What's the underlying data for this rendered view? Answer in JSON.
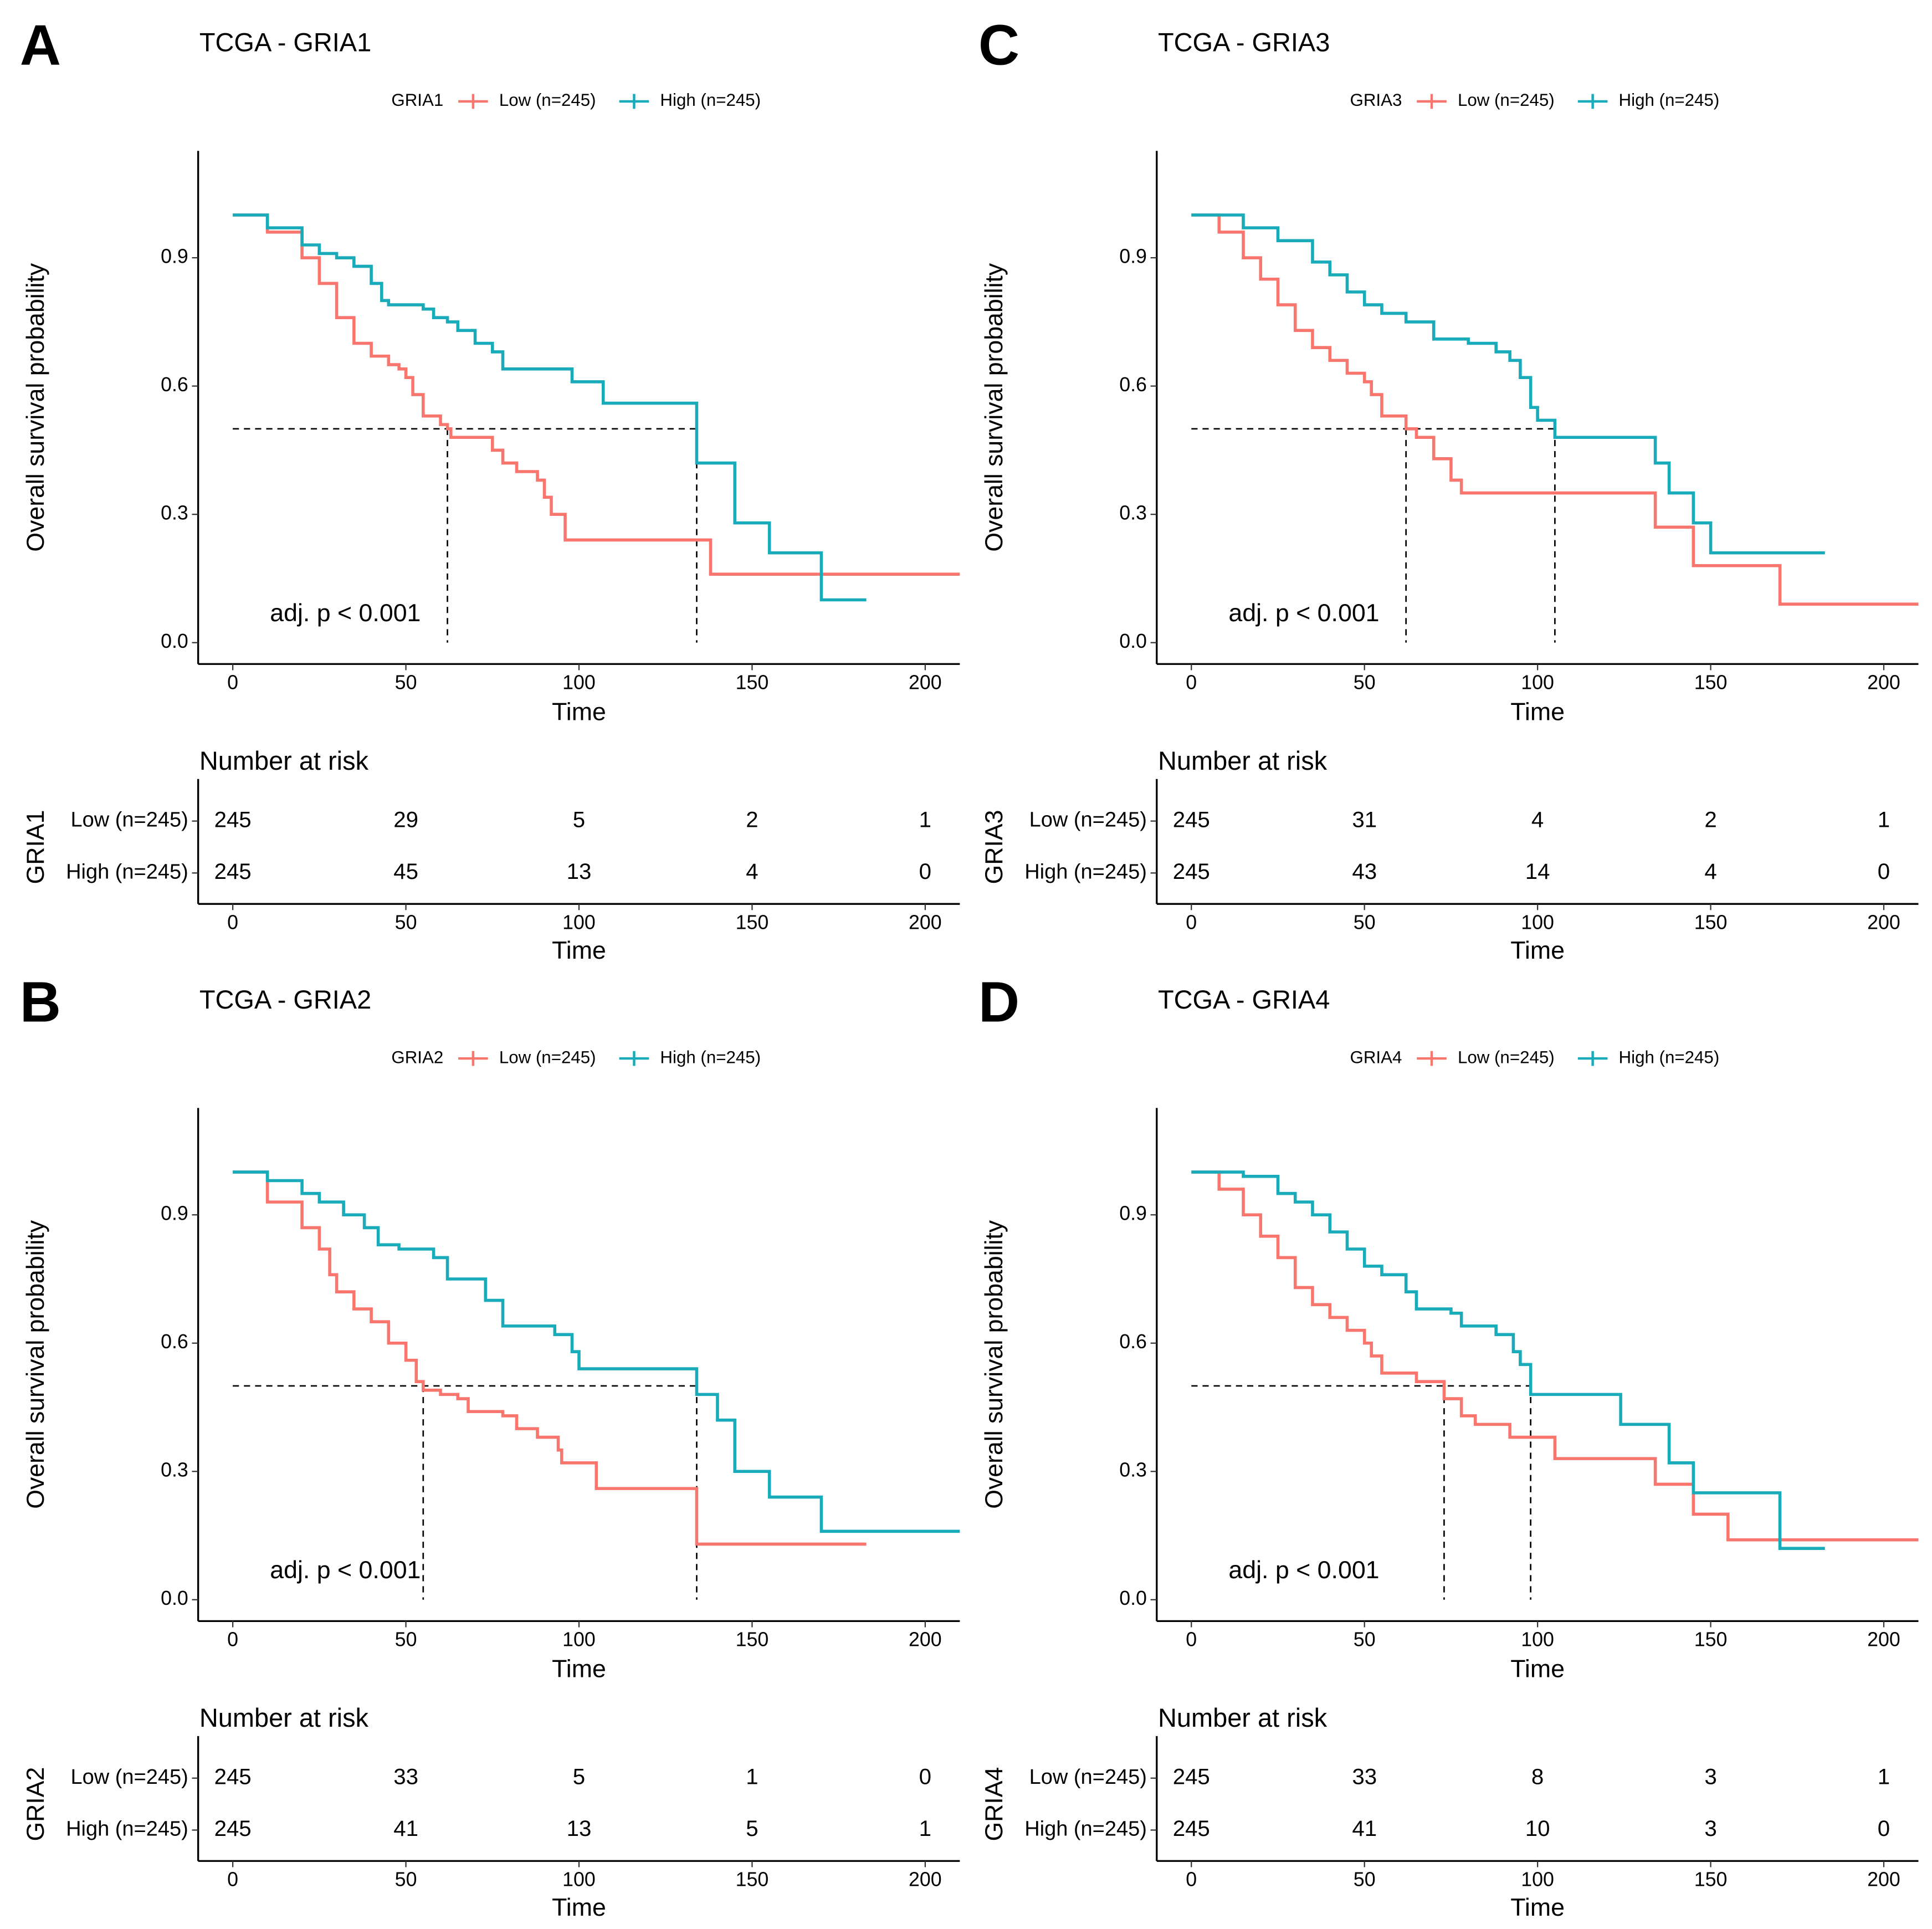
{
  "chart_data": [
    {
      "type": "line",
      "step": true,
      "panel_label": "A",
      "title": "TCGA - GRIA1",
      "legend_title": "GRIA1",
      "x_label": "Time",
      "y_label": "Overall survival probability",
      "xlim": [
        -10,
        210
      ],
      "xticks": [
        0,
        50,
        100,
        150,
        200
      ],
      "ylim": [
        -0.05,
        1.15
      ],
      "yticks": [
        {
          "value": 0,
          "label": "0.0"
        },
        0.3,
        0.6,
        0.9
      ],
      "series": [
        {
          "name": "Low (n=245)",
          "color": "#F8766D",
          "x": [
            0,
            10,
            20,
            25,
            30,
            35,
            40,
            45,
            48,
            50,
            52,
            55,
            60,
            62,
            63,
            75,
            78,
            82,
            88,
            90,
            92,
            96,
            138,
            210
          ],
          "values": [
            1,
            0.96,
            0.9,
            0.84,
            0.76,
            0.7,
            0.67,
            0.65,
            0.64,
            0.62,
            0.58,
            0.53,
            0.51,
            0.5,
            0.48,
            0.45,
            0.42,
            0.4,
            0.38,
            0.34,
            0.3,
            0.24,
            0.16,
            0.16
          ]
        },
        {
          "name": "High (n=245)",
          "color": "#1AABBB",
          "x": [
            0,
            10,
            20,
            25,
            30,
            35,
            40,
            43,
            45,
            55,
            58,
            62,
            65,
            70,
            75,
            78,
            98,
            107,
            134,
            145,
            155,
            170,
            183
          ],
          "values": [
            1,
            0.97,
            0.93,
            0.91,
            0.9,
            0.88,
            0.84,
            0.8,
            0.79,
            0.78,
            0.76,
            0.75,
            0.73,
            0.7,
            0.68,
            0.64,
            0.61,
            0.56,
            0.42,
            0.28,
            0.21,
            0.1,
            0.1
          ]
        }
      ],
      "median_survival": {
        "level": 0.5,
        "times": [
          62,
          134
        ]
      },
      "annotation": "adj. p < 0.001",
      "risk_table": {
        "title": "Number at risk",
        "x_label": "Time",
        "times": [
          0,
          50,
          100,
          150,
          200
        ],
        "rows": [
          {
            "name": "Low (n=245)",
            "color": "#F8766D",
            "values": [
              245,
              29,
              5,
              2,
              1
            ]
          },
          {
            "name": "High (n=245)",
            "color": "#1AABBB",
            "values": [
              245,
              45,
              13,
              4,
              0
            ]
          }
        ]
      }
    },
    {
      "type": "line",
      "step": true,
      "panel_label": "B",
      "title": "TCGA - GRIA2",
      "legend_title": "GRIA2",
      "x_label": "Time",
      "y_label": "Overall survival probability",
      "xlim": [
        -10,
        210
      ],
      "xticks": [
        0,
        50,
        100,
        150,
        200
      ],
      "ylim": [
        -0.05,
        1.15
      ],
      "yticks": [
        {
          "value": 0,
          "label": "0.0"
        },
        0.3,
        0.6,
        0.9
      ],
      "series": [
        {
          "name": "Low (n=245)",
          "color": "#F8766D",
          "x": [
            0,
            10,
            20,
            25,
            28,
            30,
            35,
            40,
            45,
            50,
            53,
            55,
            60,
            65,
            68,
            78,
            82,
            88,
            94,
            95,
            105,
            134,
            183
          ],
          "values": [
            1,
            0.93,
            0.87,
            0.82,
            0.76,
            0.72,
            0.68,
            0.65,
            0.6,
            0.56,
            0.51,
            0.49,
            0.48,
            0.47,
            0.44,
            0.43,
            0.4,
            0.38,
            0.35,
            0.32,
            0.26,
            0.13,
            0.13
          ]
        },
        {
          "name": "High (n=245)",
          "color": "#1AABBB",
          "x": [
            0,
            10,
            20,
            25,
            32,
            38,
            42,
            48,
            58,
            62,
            73,
            78,
            93,
            98,
            100,
            134,
            140,
            145,
            155,
            170,
            210
          ],
          "values": [
            1,
            0.98,
            0.95,
            0.93,
            0.9,
            0.87,
            0.83,
            0.82,
            0.8,
            0.75,
            0.7,
            0.64,
            0.62,
            0.58,
            0.54,
            0.48,
            0.42,
            0.3,
            0.24,
            0.16,
            0.16
          ]
        }
      ],
      "median_survival": {
        "level": 0.5,
        "times": [
          55,
          134
        ]
      },
      "annotation": "adj. p < 0.001",
      "risk_table": {
        "title": "Number at risk",
        "x_label": "Time",
        "times": [
          0,
          50,
          100,
          150,
          200
        ],
        "rows": [
          {
            "name": "Low (n=245)",
            "color": "#F8766D",
            "values": [
              245,
              33,
              5,
              1,
              0
            ]
          },
          {
            "name": "High (n=245)",
            "color": "#1AABBB",
            "values": [
              245,
              41,
              13,
              5,
              1
            ]
          }
        ]
      }
    },
    {
      "type": "line",
      "step": true,
      "panel_label": "C",
      "title": "TCGA - GRIA3",
      "legend_title": "GRIA3",
      "x_label": "Time",
      "y_label": "Overall survival probability",
      "xlim": [
        -10,
        210
      ],
      "xticks": [
        0,
        50,
        100,
        150,
        200
      ],
      "ylim": [
        -0.05,
        1.15
      ],
      "yticks": [
        {
          "value": 0,
          "label": "0.0"
        },
        0.3,
        0.6,
        0.9
      ],
      "series": [
        {
          "name": "Low (n=245)",
          "color": "#F8766D",
          "x": [
            0,
            8,
            15,
            20,
            25,
            30,
            35,
            40,
            45,
            50,
            52,
            55,
            62,
            65,
            70,
            75,
            78,
            134,
            145,
            170,
            210
          ],
          "values": [
            1,
            0.96,
            0.9,
            0.85,
            0.79,
            0.73,
            0.69,
            0.66,
            0.63,
            0.61,
            0.58,
            0.53,
            0.5,
            0.48,
            0.43,
            0.38,
            0.35,
            0.27,
            0.18,
            0.09,
            0.09
          ]
        },
        {
          "name": "High (n=245)",
          "color": "#1AABBB",
          "x": [
            0,
            15,
            25,
            35,
            40,
            45,
            50,
            55,
            62,
            70,
            80,
            88,
            92,
            95,
            98,
            100,
            105,
            134,
            138,
            145,
            150,
            183
          ],
          "values": [
            1,
            0.97,
            0.94,
            0.89,
            0.86,
            0.82,
            0.79,
            0.77,
            0.75,
            0.71,
            0.7,
            0.68,
            0.66,
            0.62,
            0.55,
            0.52,
            0.48,
            0.42,
            0.35,
            0.28,
            0.21,
            0.21
          ]
        }
      ],
      "median_survival": {
        "level": 0.5,
        "times": [
          62,
          105
        ]
      },
      "annotation": "adj. p < 0.001",
      "risk_table": {
        "title": "Number at risk",
        "x_label": "Time",
        "times": [
          0,
          50,
          100,
          150,
          200
        ],
        "rows": [
          {
            "name": "Low (n=245)",
            "color": "#F8766D",
            "values": [
              245,
              31,
              4,
              2,
              1
            ]
          },
          {
            "name": "High (n=245)",
            "color": "#1AABBB",
            "values": [
              245,
              43,
              14,
              4,
              0
            ]
          }
        ]
      }
    },
    {
      "type": "line",
      "step": true,
      "panel_label": "D",
      "title": "TCGA - GRIA4",
      "legend_title": "GRIA4",
      "x_label": "Time",
      "y_label": "Overall survival probability",
      "xlim": [
        -10,
        210
      ],
      "xticks": [
        0,
        50,
        100,
        150,
        200
      ],
      "ylim": [
        -0.05,
        1.15
      ],
      "yticks": [
        {
          "value": 0,
          "label": "0.0"
        },
        0.3,
        0.6,
        0.9
      ],
      "series": [
        {
          "name": "Low (n=245)",
          "color": "#F8766D",
          "x": [
            0,
            8,
            15,
            20,
            25,
            30,
            35,
            40,
            45,
            50,
            52,
            55,
            65,
            73,
            78,
            82,
            92,
            105,
            134,
            145,
            155,
            210
          ],
          "values": [
            1,
            0.96,
            0.9,
            0.85,
            0.8,
            0.73,
            0.69,
            0.66,
            0.63,
            0.6,
            0.57,
            0.53,
            0.51,
            0.47,
            0.43,
            0.41,
            0.38,
            0.33,
            0.27,
            0.2,
            0.14,
            0.14
          ]
        },
        {
          "name": "High (n=245)",
          "color": "#1AABBB",
          "x": [
            0,
            15,
            25,
            30,
            35,
            40,
            45,
            50,
            55,
            62,
            65,
            75,
            78,
            88,
            93,
            95,
            98,
            124,
            138,
            145,
            170,
            183
          ],
          "values": [
            1,
            0.99,
            0.95,
            0.93,
            0.9,
            0.86,
            0.82,
            0.78,
            0.76,
            0.72,
            0.68,
            0.67,
            0.64,
            0.62,
            0.58,
            0.55,
            0.48,
            0.41,
            0.32,
            0.25,
            0.12,
            0.12
          ]
        }
      ],
      "median_survival": {
        "level": 0.5,
        "times": [
          73,
          98
        ]
      },
      "annotation": "adj. p < 0.001",
      "risk_table": {
        "title": "Number at risk",
        "x_label": "Time",
        "times": [
          0,
          50,
          100,
          150,
          200
        ],
        "rows": [
          {
            "name": "Low (n=245)",
            "color": "#F8766D",
            "values": [
              245,
              33,
              8,
              3,
              1
            ]
          },
          {
            "name": "High (n=245)",
            "color": "#1AABBB",
            "values": [
              245,
              41,
              10,
              3,
              0
            ]
          }
        ]
      }
    }
  ]
}
